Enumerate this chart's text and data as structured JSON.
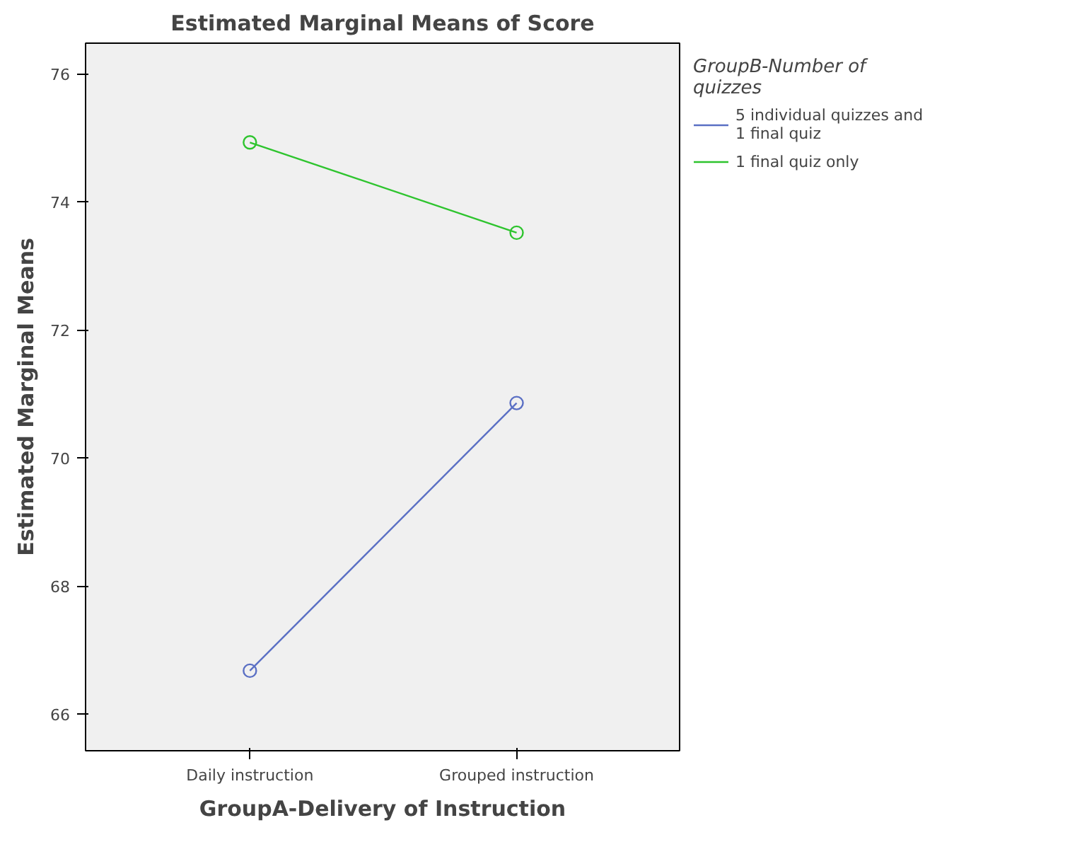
{
  "chart_data": {
    "type": "line",
    "title": "Estimated Marginal Means of Score",
    "xlabel": "GroupA-Delivery of Instruction",
    "ylabel": "Estimated Marginal Means",
    "legend_title": "GroupB-Number of quizzes",
    "categories": [
      "Daily instruction",
      "Grouped instruction"
    ],
    "series": [
      {
        "name": "5 individual quizzes and 1 final quiz",
        "color": "#5a6fc4",
        "values": [
          66.68,
          70.86
        ]
      },
      {
        "name": "1 final quiz only",
        "color": "#2ec42e",
        "values": [
          74.93,
          73.52
        ]
      }
    ],
    "ylim": [
      65.43,
      76.48
    ],
    "yticks": [
      66,
      68,
      70,
      72,
      74,
      76
    ],
    "grid": false,
    "legend": "top right",
    "marker": "circle"
  }
}
